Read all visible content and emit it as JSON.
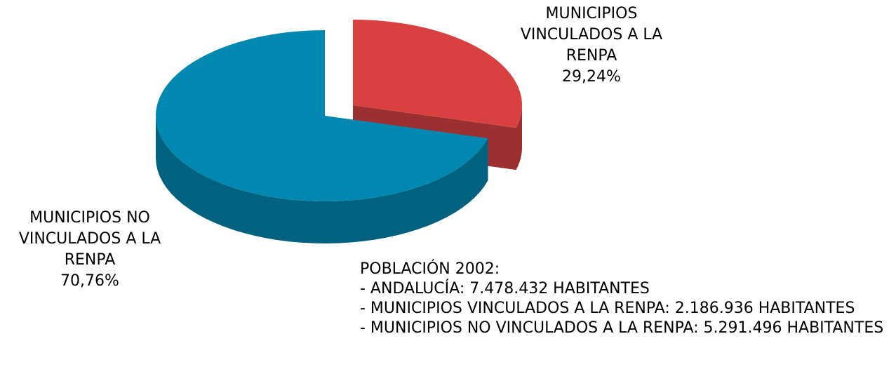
{
  "chart_data": {
    "type": "pie3d",
    "categories": [
      "MUNICIPIOS VINCULADOS A LA RENPA",
      "MUNICIPIOS NO VINCULADOS A LA RENPA"
    ],
    "values": [
      29.24,
      70.76
    ],
    "value_labels": [
      "29,24%",
      "70,76%"
    ],
    "colors": [
      "#d94141",
      "#0088b0"
    ],
    "annotations": [
      "POBLACIÓN 2002:",
      "- ANDALUCÍA: 7.478.432 HABITANTES",
      "- MUNICIPIOS VINCULADOS A LA RENPA: 2.186.936 HABITANTES",
      "- MUNICIPIOS NO VINCULADOS A LA RENPA: 5.291.496 HABITANTES"
    ]
  }
}
